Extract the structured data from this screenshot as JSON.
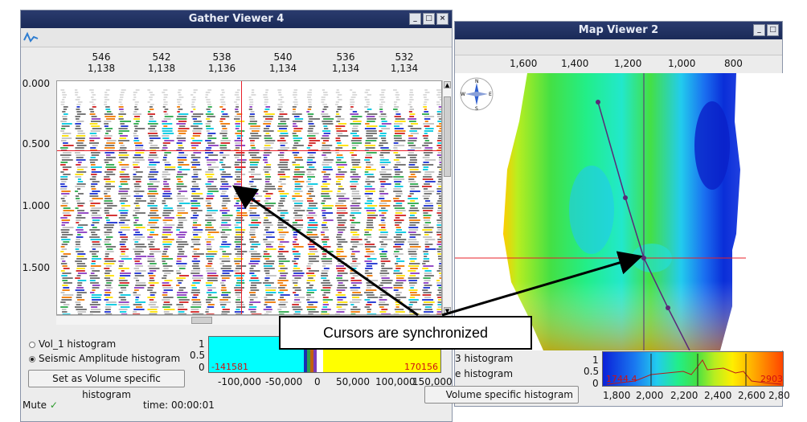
{
  "gather_window": {
    "title": "Gather Viewer 4",
    "top_axis": [
      {
        "a": "546",
        "b": "1,138"
      },
      {
        "a": "542",
        "b": "1,138"
      },
      {
        "a": "538",
        "b": "1,136"
      },
      {
        "a": "540",
        "b": "1,134"
      },
      {
        "a": "536",
        "b": "1,134"
      },
      {
        "a": "532",
        "b": "1,134"
      }
    ],
    "y_axis": [
      "0.000",
      "0.500",
      "1.000",
      "1.500"
    ],
    "options": {
      "vol1": "Vol_1 histogram",
      "seismic": "Seismic Amplitude histogram",
      "set_button": "Set as Volume specific histogram"
    },
    "histogram": {
      "y_ticks": [
        "1",
        "0.5",
        "0"
      ],
      "min_label": "-141581",
      "max_label": "170156",
      "x_ticks": [
        "-100,000",
        "-50,000",
        "0",
        "50,000",
        "100,000",
        "150,000"
      ]
    },
    "status": {
      "mute": "Mute",
      "time": "time: 00:00:01"
    }
  },
  "map_window": {
    "title": "Map Viewer 2",
    "top_axis": [
      "1,600",
      "1,400",
      "1,200",
      "1,000",
      "800"
    ],
    "compass": {
      "n": "N",
      "s": "S",
      "e": "E",
      "w": "W"
    },
    "options": {
      "opt1": "3 histogram",
      "opt2": "e histogram",
      "set_button": "Volume specific histogram"
    },
    "histogram": {
      "y_ticks": [
        "1",
        "0.5",
        "0"
      ],
      "min_label": "1744.4",
      "max_label": "2903",
      "x_ticks": [
        "1,800",
        "2,000",
        "2,200",
        "2,400",
        "2,600",
        "2,80"
      ]
    }
  },
  "callout": {
    "text": "Cursors are synchronized"
  },
  "colors": {
    "title_bar": "#1f2f60",
    "cursor": "#e8202a",
    "callout_border": "#000000",
    "track": "#5a2a78"
  }
}
